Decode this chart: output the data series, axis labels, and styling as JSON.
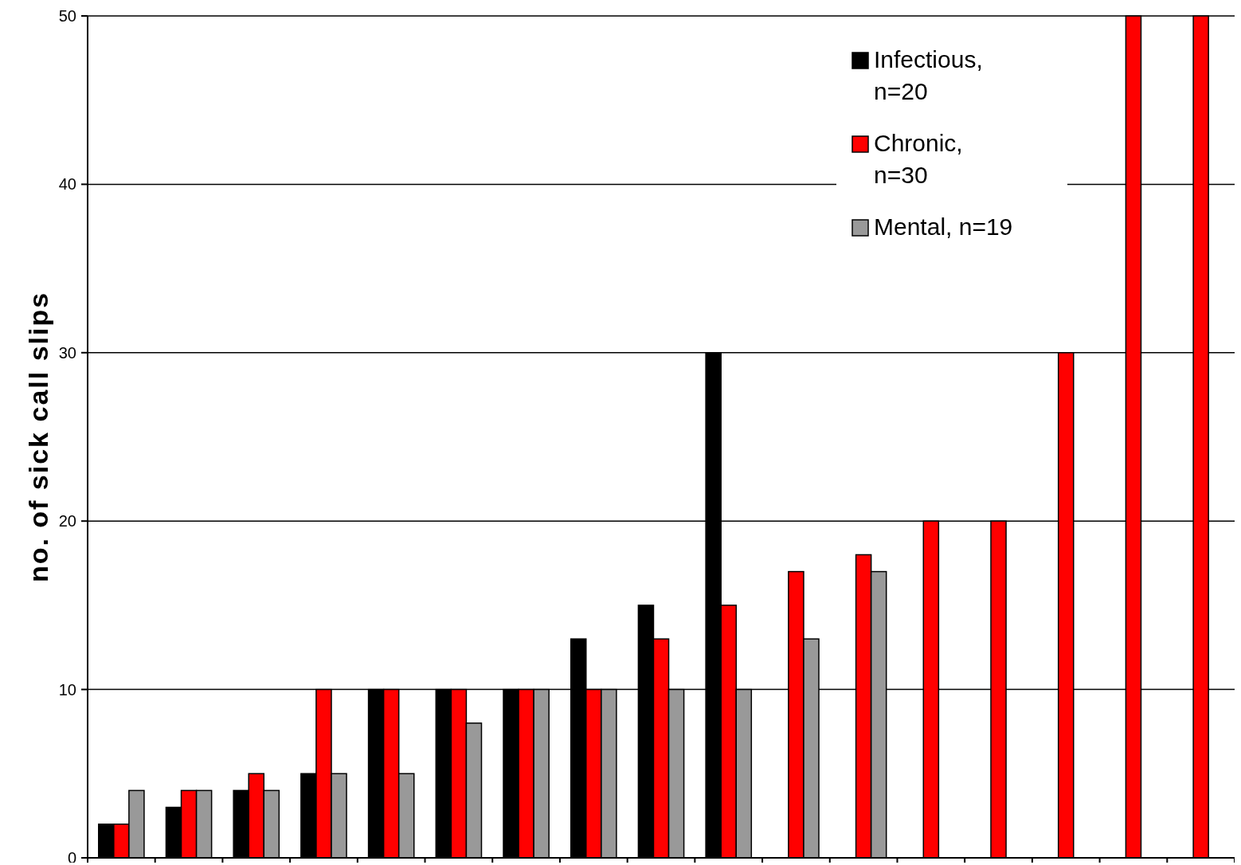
{
  "chart_data": {
    "type": "bar",
    "ylabel": "no. of sick call slips",
    "categories": [
      null,
      null,
      null,
      null,
      null,
      null,
      null,
      null,
      null,
      null,
      null,
      null,
      null,
      null,
      null,
      null,
      null
    ],
    "series": [
      {
        "name": "Infectious, n=20",
        "color": "#000000",
        "values": [
          2,
          3,
          4,
          5,
          10,
          10,
          10,
          13,
          15,
          30,
          null,
          null,
          null,
          null,
          null,
          null,
          null
        ]
      },
      {
        "name": "Chronic, n=30",
        "color": "#ff0000",
        "values": [
          2,
          4,
          5,
          10,
          10,
          10,
          10,
          10,
          13,
          15,
          17,
          18,
          20,
          20,
          30,
          50,
          50
        ]
      },
      {
        "name": "Mental, n=19",
        "color": "#999999",
        "values": [
          4,
          4,
          4,
          5,
          5,
          8,
          10,
          10,
          10,
          10,
          13,
          17,
          null,
          null,
          null,
          null,
          null
        ]
      }
    ],
    "ylim": [
      0,
      50
    ],
    "yticks": [
      0,
      10,
      20,
      30,
      40,
      50
    ],
    "grid": "y",
    "legend": "top right"
  }
}
